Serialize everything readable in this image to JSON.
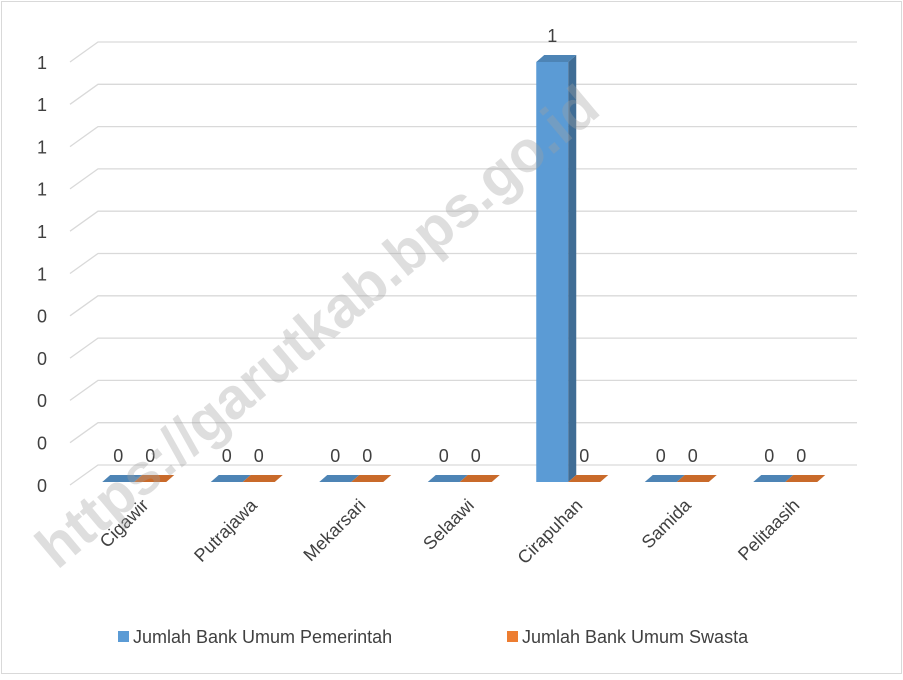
{
  "chart_data": {
    "type": "bar3d",
    "categories": [
      "Cigawir",
      "Putrajawa",
      "Mekarsari",
      "Selaawi",
      "Cirapuhan",
      "Samida",
      "Pelitaasih"
    ],
    "series": [
      {
        "name": "Jumlah Bank Umum Pemerintah",
        "color": "#5b9bd5",
        "values": [
          0,
          0,
          0,
          0,
          1,
          0,
          0
        ]
      },
      {
        "name": "Jumlah Bank Umum Swasta",
        "color": "#ed7d31",
        "values": [
          0,
          0,
          0,
          0,
          0,
          0,
          0
        ]
      }
    ],
    "ylim": [
      0,
      1
    ],
    "yticks": [
      0,
      {
        "value": 0.1,
        "label": "0"
      },
      {
        "value": 0.2,
        "label": "0"
      },
      {
        "value": 0.3,
        "label": "0"
      },
      {
        "value": 0.4,
        "label": "0"
      },
      {
        "value": 0.5,
        "label": "1"
      },
      {
        "value": 0.6,
        "label": "1"
      },
      {
        "value": 0.7,
        "label": "1"
      },
      {
        "value": 0.8,
        "label": "1"
      },
      {
        "value": 0.9,
        "label": "1"
      },
      1
    ],
    "grid": true,
    "legend": "bottom",
    "watermark": "https://garutkab.bps.go.id"
  }
}
